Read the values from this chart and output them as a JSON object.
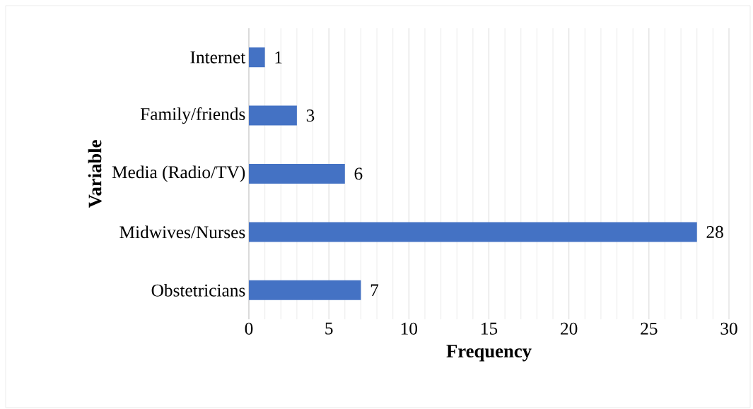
{
  "chart_data": {
    "type": "bar",
    "orientation": "horizontal",
    "xlabel": "Frequency",
    "ylabel": "Variable",
    "categories": [
      "Internet",
      "Family/friends",
      "Media (Radio/TV)",
      "Midwives/Nurses",
      "Obstetricians"
    ],
    "values": [
      1,
      3,
      6,
      28,
      7
    ],
    "color": "#4472c4",
    "xlim": [
      0,
      30
    ],
    "xticks": [
      0,
      5,
      10,
      15,
      20,
      25,
      30
    ],
    "grid": "x",
    "data_labels": true
  }
}
